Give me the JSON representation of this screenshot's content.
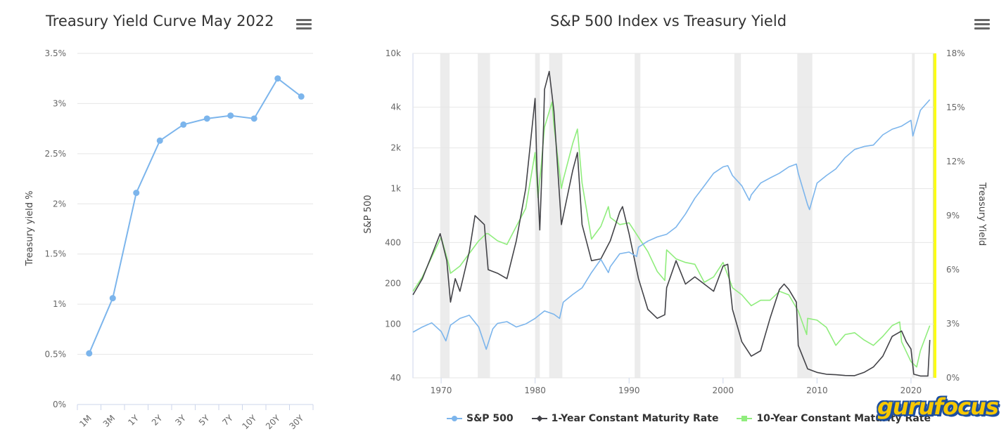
{
  "chart_data": [
    {
      "type": "line",
      "title": "Treasury Yield Curve May 2022",
      "xlabel": "",
      "ylabel": "Treasury yield %",
      "categories": [
        "1M",
        "3M",
        "1Y",
        "2Y",
        "3Y",
        "5Y",
        "7Y",
        "10Y",
        "20Y",
        "30Y"
      ],
      "values": [
        0.51,
        1.06,
        2.11,
        2.63,
        2.79,
        2.85,
        2.88,
        2.85,
        3.25,
        3.07
      ],
      "y_ticks": [
        "0%",
        "0.5%",
        "1%",
        "1.5%",
        "2%",
        "2.5%",
        "3%",
        "3.5%"
      ],
      "ylim": [
        0,
        3.5
      ],
      "color": "#7cb5ec",
      "grid": true
    },
    {
      "type": "line",
      "title": "S&P 500 Index vs Treasury Yield",
      "xlabel": "",
      "ylabel": "S&P 500",
      "ylabel_right": "Treasury Yield",
      "x_ticks": [
        "1970",
        "1980",
        "1990",
        "2000",
        "2010",
        "2020"
      ],
      "xlim": [
        1967,
        2022.4
      ],
      "y_left_scale": "log",
      "y_left_ticks": [
        "40",
        "100",
        "200",
        "400",
        "1k",
        "2k",
        "4k",
        "10k"
      ],
      "y_left_tick_values": [
        40,
        100,
        200,
        400,
        1000,
        2000,
        4000,
        10000
      ],
      "ylim_left": [
        40,
        10000
      ],
      "y_right_ticks": [
        "0%",
        "3%",
        "6%",
        "9%",
        "12%",
        "15%",
        "18%"
      ],
      "ylim_right": [
        0,
        18
      ],
      "recessions": [
        [
          1969.9,
          1970.9
        ],
        [
          1973.9,
          1975.2
        ],
        [
          1980.0,
          1980.5
        ],
        [
          1981.5,
          1982.9
        ],
        [
          1990.6,
          1991.2
        ],
        [
          2001.2,
          2001.9
        ],
        [
          2007.9,
          2009.5
        ],
        [
          2020.1,
          2020.4
        ]
      ],
      "highlight_color": "#ffff00",
      "series": [
        {
          "name": "S&P 500",
          "axis": "left",
          "color": "#7cb5ec",
          "x": [
            1967,
            1968,
            1969,
            1970,
            1970.5,
            1971,
            1972,
            1973,
            1974,
            1974.8,
            1975.5,
            1976,
            1977,
            1978,
            1979,
            1980,
            1981,
            1982,
            1982.6,
            1983,
            1984,
            1985,
            1986,
            1987,
            1987.8,
            1988,
            1989,
            1990,
            1990.8,
            1991,
            1992,
            1993,
            1994,
            1995,
            1996,
            1997,
            1998,
            1999,
            2000,
            2000.5,
            2001,
            2002,
            2002.8,
            2003,
            2004,
            2005,
            2006,
            2007,
            2007.8,
            2008,
            2009,
            2009.2,
            2010,
            2011,
            2012,
            2013,
            2014,
            2015,
            2016,
            2017,
            2018,
            2019,
            2020,
            2020.2,
            2021,
            2022
          ],
          "values": [
            87,
            95,
            102,
            88,
            75,
            98,
            110,
            116,
            95,
            65,
            92,
            101,
            104,
            95,
            100,
            110,
            125,
            118,
            110,
            145,
            165,
            185,
            240,
            300,
            240,
            265,
            330,
            340,
            315,
            370,
            410,
            440,
            460,
            520,
            650,
            850,
            1050,
            1300,
            1450,
            1480,
            1250,
            1050,
            820,
            900,
            1100,
            1200,
            1300,
            1450,
            1520,
            1300,
            760,
            700,
            1100,
            1250,
            1400,
            1700,
            1950,
            2050,
            2100,
            2500,
            2750,
            2900,
            3200,
            2450,
            3800,
            4550
          ]
        },
        {
          "name": "1-Year Constant Maturity Rate",
          "axis": "right",
          "color": "#434348",
          "x": [
            1967,
            1968,
            1969,
            1969.9,
            1970.6,
            1971,
            1971.5,
            1972,
            1973,
            1973.6,
            1974.6,
            1975,
            1976,
            1977,
            1978,
            1979,
            1980,
            1980.2,
            1980.5,
            1980.9,
            1981,
            1981.5,
            1982,
            1982.8,
            1983,
            1984,
            1984.5,
            1985,
            1986,
            1987,
            1988,
            1989,
            1989.3,
            1990,
            1991,
            1992,
            1993,
            1993.8,
            1994,
            1995,
            1996,
            1997,
            1998,
            1999,
            2000,
            2000.5,
            2001,
            2002,
            2003,
            2004,
            2005,
            2006,
            2006.5,
            2007,
            2007.8,
            2008,
            2009,
            2010,
            2011,
            2012,
            2013,
            2014,
            2015,
            2016,
            2017,
            2018,
            2019,
            2019.5,
            2020,
            2020.3,
            2021,
            2021.8,
            2022
          ],
          "values": [
            4.6,
            5.5,
            6.8,
            8.0,
            6.5,
            4.2,
            5.5,
            4.8,
            7.0,
            9.0,
            8.5,
            6.0,
            5.8,
            5.5,
            7.6,
            10.5,
            15.5,
            11.5,
            8.2,
            14.0,
            16.0,
            17.0,
            14.8,
            8.5,
            9.0,
            11.5,
            12.5,
            8.5,
            6.5,
            6.6,
            7.6,
            9.2,
            9.5,
            8.0,
            5.5,
            3.8,
            3.3,
            3.5,
            5.0,
            6.5,
            5.2,
            5.6,
            5.2,
            4.8,
            6.2,
            6.3,
            3.8,
            2.0,
            1.2,
            1.5,
            3.3,
            4.9,
            5.2,
            4.9,
            4.2,
            1.8,
            0.5,
            0.3,
            0.2,
            0.17,
            0.13,
            0.12,
            0.3,
            0.6,
            1.2,
            2.3,
            2.6,
            2.0,
            1.6,
            0.2,
            0.1,
            0.1,
            2.1
          ]
        },
        {
          "name": "10-Year Constant Maturity Rate",
          "axis": "right",
          "color": "#90ed7d",
          "x": [
            1967,
            1968,
            1969,
            1970,
            1970.8,
            1971,
            1972,
            1973,
            1974,
            1974.8,
            1975,
            1976,
            1977,
            1978,
            1979,
            1980,
            1980.3,
            1980.6,
            1981,
            1981.8,
            1982,
            1982.8,
            1983,
            1984,
            1984.5,
            1985,
            1986,
            1987,
            1987.8,
            1988,
            1989,
            1990,
            1991,
            1992,
            1993,
            1993.8,
            1994,
            1995,
            1996,
            1997,
            1998,
            1999,
            2000,
            2001,
            2002,
            2003,
            2004,
            2005,
            2006,
            2007,
            2008,
            2008.9,
            2009,
            2010,
            2011,
            2012,
            2013,
            2014,
            2015,
            2016,
            2017,
            2018,
            2018.8,
            2019,
            2020,
            2020.6,
            2021,
            2022
          ],
          "values": [
            4.8,
            5.6,
            6.7,
            7.8,
            6.3,
            5.8,
            6.2,
            6.9,
            7.6,
            8.0,
            8.0,
            7.6,
            7.4,
            8.4,
            9.4,
            12.5,
            10.0,
            11.5,
            13.9,
            15.3,
            14.0,
            10.5,
            11.0,
            13.0,
            13.8,
            10.8,
            7.7,
            8.4,
            9.5,
            8.9,
            8.5,
            8.6,
            7.8,
            7.0,
            5.9,
            5.4,
            7.1,
            6.6,
            6.4,
            6.3,
            5.3,
            5.6,
            6.4,
            5.0,
            4.6,
            4.0,
            4.3,
            4.3,
            4.8,
            4.6,
            3.7,
            2.4,
            3.3,
            3.2,
            2.8,
            1.8,
            2.4,
            2.5,
            2.1,
            1.8,
            2.3,
            2.9,
            3.1,
            2.0,
            0.9,
            0.6,
            1.5,
            2.9
          ]
        }
      ]
    }
  ],
  "menu_icon": "hamburger-menu-icon",
  "legend": {
    "items": [
      {
        "label": "S&P 500",
        "color": "#7cb5ec",
        "marker": "circle"
      },
      {
        "label": "1-Year Constant Maturity Rate",
        "color": "#434348",
        "marker": "diamond"
      },
      {
        "label": "10-Year Constant Maturity Rate",
        "color": "#90ed7d",
        "marker": "square"
      }
    ]
  },
  "logo": {
    "text": "gurufocus",
    "color": "#f6c700",
    "outline": "#1c4ea0"
  }
}
